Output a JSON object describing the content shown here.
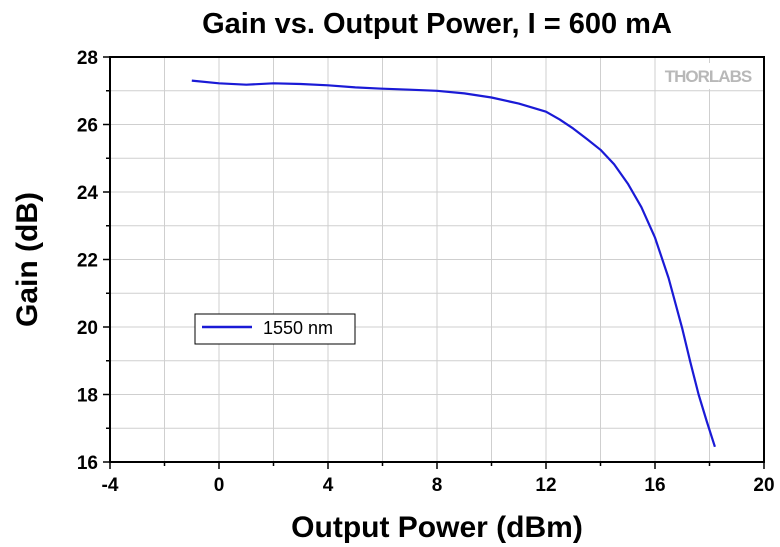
{
  "logo": "THORLABS",
  "chart_data": {
    "type": "line",
    "title": "Gain vs. Output Power, I = 600 mA",
    "xlabel": "Output Power (dBm)",
    "ylabel": "Gain (dB)",
    "xlim": [
      -4,
      20
    ],
    "ylim": [
      16,
      28
    ],
    "xticks": [
      -4,
      0,
      4,
      8,
      12,
      16,
      20
    ],
    "yticks": [
      16,
      18,
      20,
      22,
      24,
      26,
      28
    ],
    "grid": true,
    "legend_position": "center-left",
    "line_color": "#1a1ad6",
    "series": [
      {
        "name": "1550 nm",
        "x": [
          -1.0,
          0.0,
          1.0,
          2.0,
          3.0,
          4.0,
          5.0,
          6.0,
          7.0,
          8.0,
          9.0,
          10.0,
          11.0,
          12.0,
          12.5,
          13.0,
          13.5,
          14.0,
          14.5,
          15.0,
          15.5,
          16.0,
          16.5,
          17.0,
          17.3,
          17.6,
          17.9,
          18.2
        ],
        "y": [
          27.3,
          27.22,
          27.18,
          27.22,
          27.2,
          27.16,
          27.1,
          27.06,
          27.03,
          27.0,
          26.92,
          26.8,
          26.62,
          26.38,
          26.15,
          25.88,
          25.57,
          25.25,
          24.82,
          24.25,
          23.55,
          22.65,
          21.45,
          19.95,
          18.95,
          18.0,
          17.2,
          16.45
        ]
      }
    ]
  }
}
